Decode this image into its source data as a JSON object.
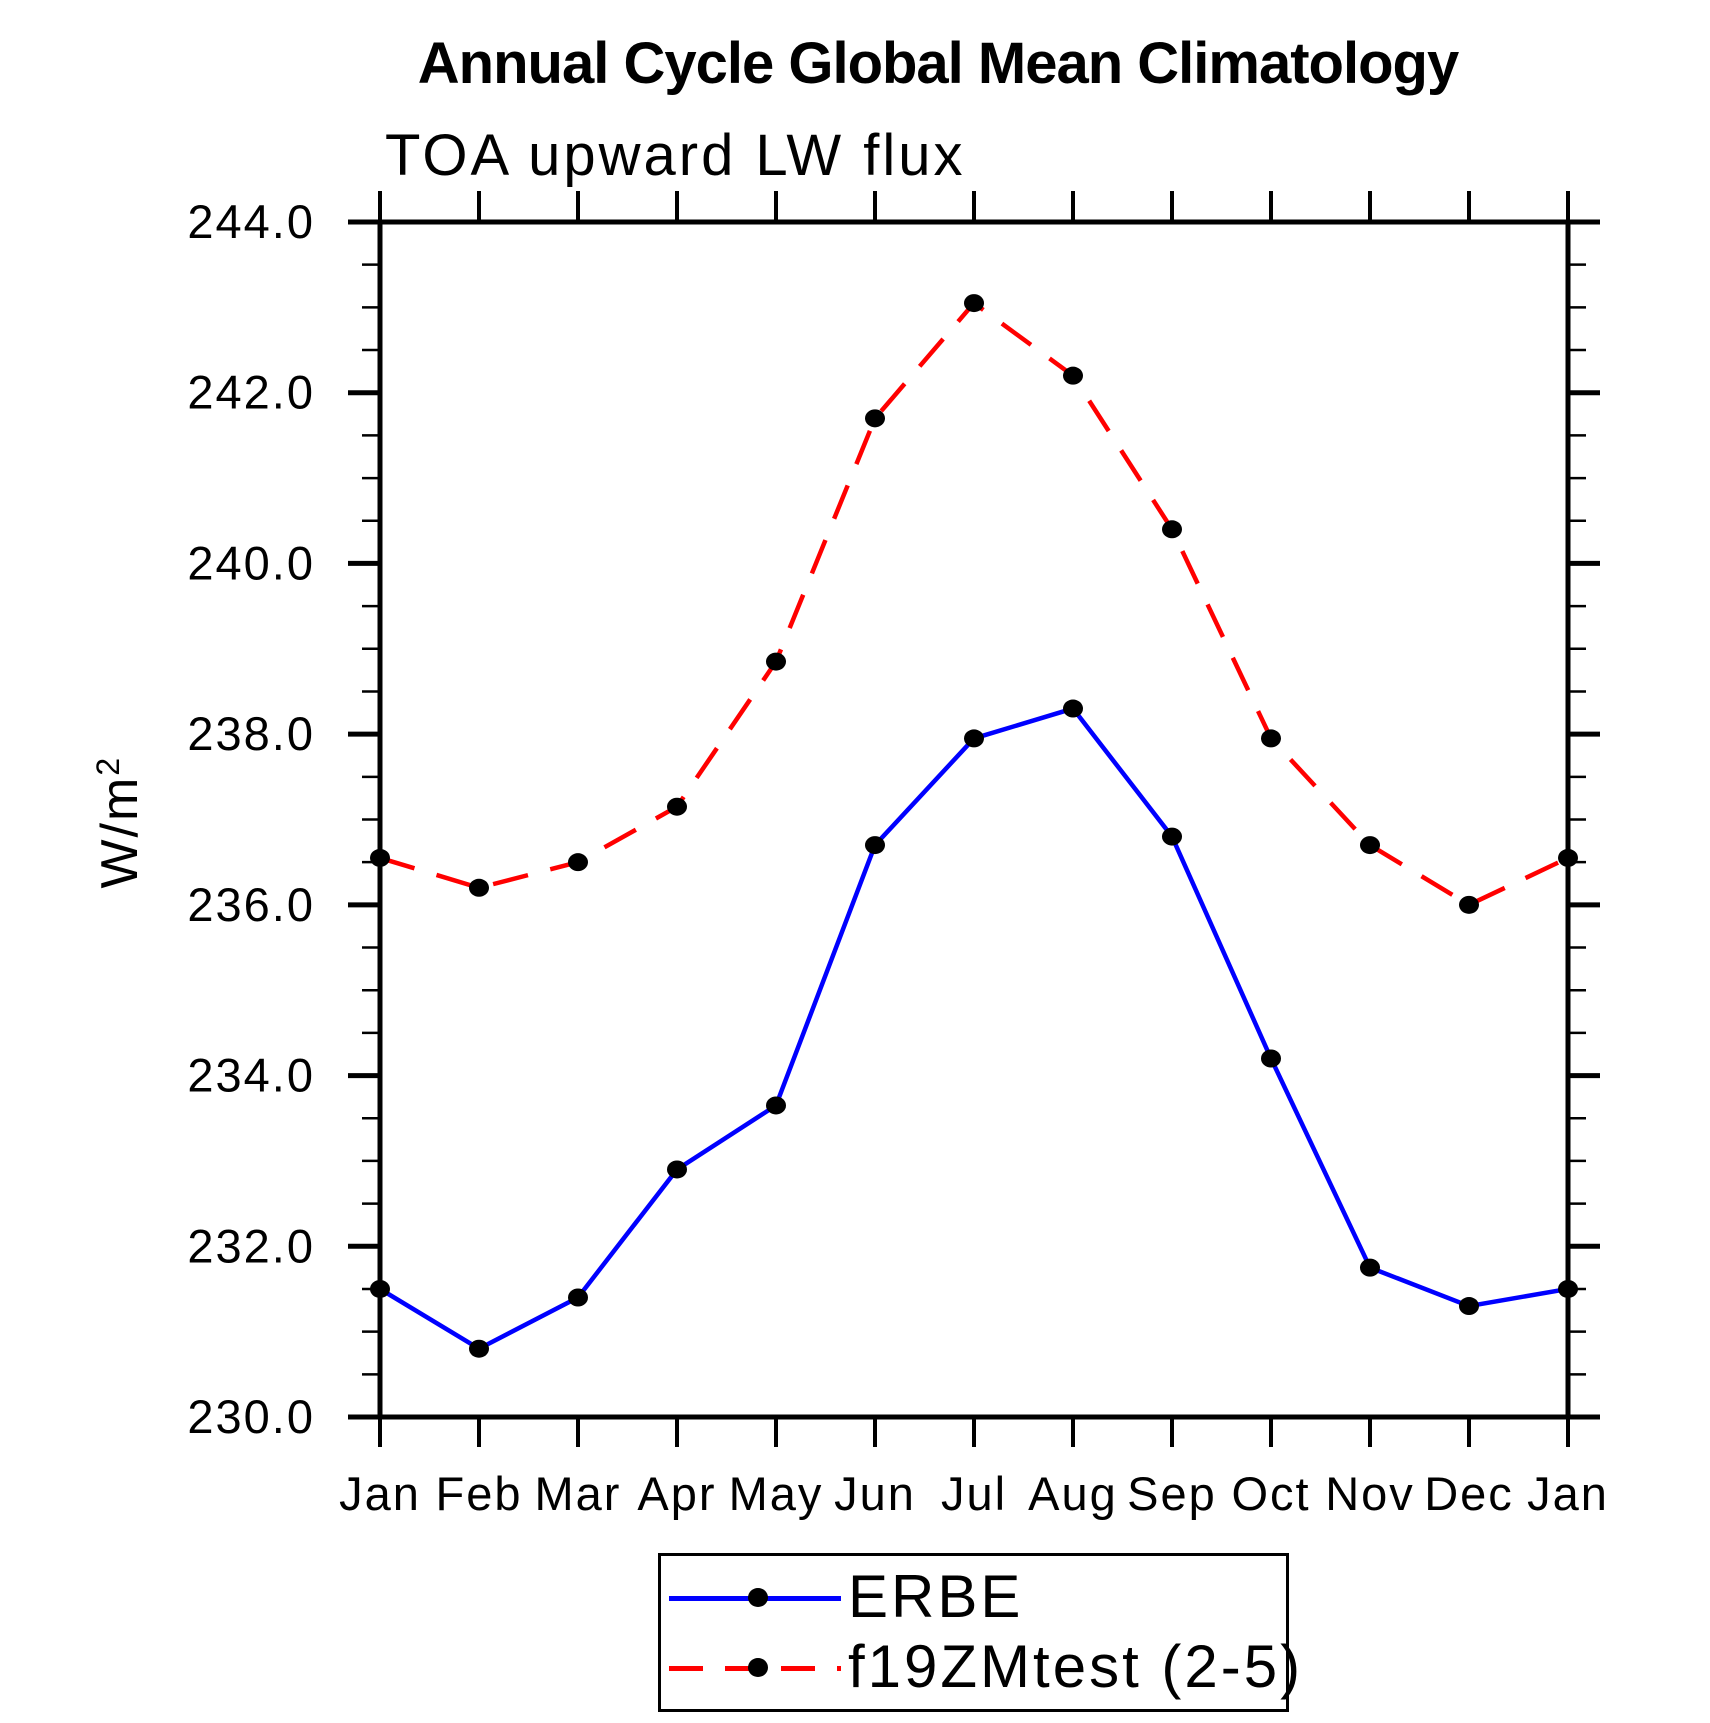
{
  "title": "Annual Cycle Global Mean Climatology",
  "subtitle": "TOA upward LW flux",
  "y_axis": {
    "label": "W/m",
    "label_sup": "2",
    "tick_labels": [
      "244.0",
      "242.0",
      "240.0",
      "238.0",
      "236.0",
      "234.0",
      "232.0",
      "230.0"
    ]
  },
  "x_axis": {
    "tick_labels": [
      "Jan",
      "Feb",
      "Mar",
      "Apr",
      "May",
      "Jun",
      "Jul",
      "Aug",
      "Sep",
      "Oct",
      "Nov",
      "Dec",
      "Jan"
    ]
  },
  "legend": {
    "entries": [
      {
        "label": "ERBE",
        "color": "#0000ff",
        "style": "solid",
        "marker": "filled-circle"
      },
      {
        "label": "f19ZMtest (2-5)",
        "color": "#ff0000",
        "style": "dashed",
        "marker": "filled-circle"
      }
    ]
  },
  "chart_data": {
    "type": "line",
    "title": "Annual Cycle Global Mean Climatology",
    "subtitle": "TOA upward LW flux",
    "xlabel": "",
    "ylabel": "W/m^2",
    "x": [
      "Jan",
      "Feb",
      "Mar",
      "Apr",
      "May",
      "Jun",
      "Jul",
      "Aug",
      "Sep",
      "Oct",
      "Nov",
      "Dec",
      "Jan"
    ],
    "series": [
      {
        "name": "ERBE",
        "color": "#0000ff",
        "line_style": "solid",
        "marker": "filled-circle",
        "marker_color": "#000000",
        "values": [
          231.5,
          230.8,
          231.4,
          232.9,
          233.65,
          236.7,
          237.95,
          238.3,
          236.8,
          234.2,
          231.75,
          231.3,
          231.5
        ]
      },
      {
        "name": "f19ZMtest (2-5)",
        "color": "#ff0000",
        "line_style": "dashed",
        "marker": "filled-circle",
        "marker_color": "#000000",
        "values": [
          236.55,
          236.2,
          236.5,
          237.15,
          238.85,
          241.7,
          243.05,
          242.2,
          240.4,
          237.95,
          236.7,
          236.0,
          236.55
        ]
      }
    ],
    "ylim": [
      230.0,
      244.0
    ],
    "y_major_step": 2.0,
    "y_minor_step": 0.5,
    "grid": false,
    "tick_direction": "out",
    "legend_position": "bottom-center"
  }
}
